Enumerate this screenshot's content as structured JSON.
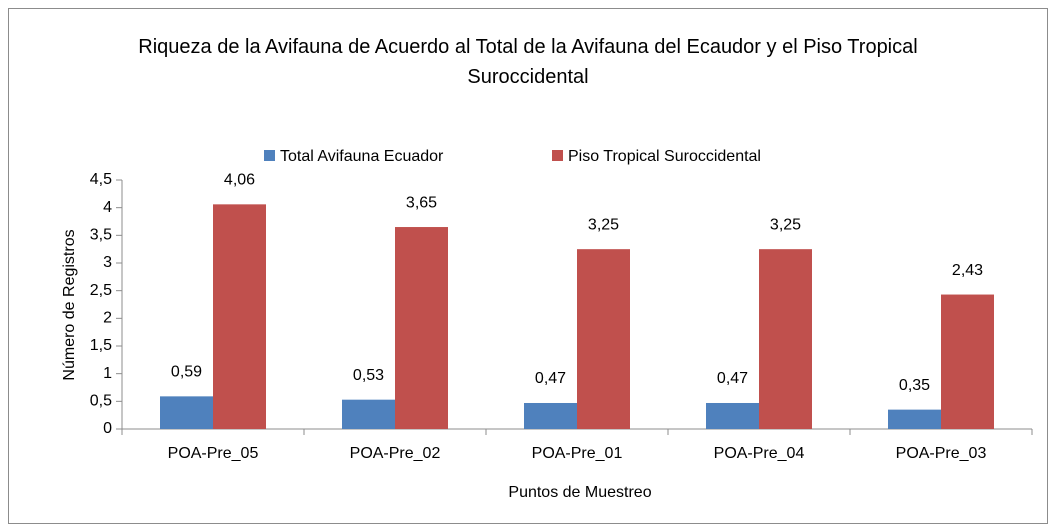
{
  "chart_data": {
    "type": "bar",
    "title": "Riqueza de la Avifauna de Acuerdo al Total de la Avifauna del Ecaudor y el Piso Tropical Suroccidental",
    "x_label": "Puntos de Muestreo",
    "y_label": "Número de Registros",
    "categories": [
      "POA-Pre_05",
      "POA-Pre_02",
      "POA-Pre_01",
      "POA-Pre_04",
      "POA-Pre_03"
    ],
    "series": [
      {
        "name": "Total Avifauna Ecuador",
        "color": "#4f81bd",
        "values": [
          0.59,
          0.53,
          0.47,
          0.47,
          0.35
        ],
        "value_labels": [
          "0,59",
          "0,53",
          "0,47",
          "0,47",
          "0,35"
        ]
      },
      {
        "name": "Piso Tropical Suroccidental",
        "color": "#c0504d",
        "values": [
          4.06,
          3.65,
          3.25,
          3.25,
          2.43
        ],
        "value_labels": [
          "4,06",
          "3,65",
          "3,25",
          "3,25",
          "2,43"
        ]
      }
    ],
    "ylim": [
      0,
      4.5
    ],
    "yticks": [
      0,
      {
        "value": 0.5,
        "label": "0,5"
      },
      1,
      {
        "value": 1.5,
        "label": "1,5"
      },
      2,
      {
        "value": 2.5,
        "label": "2,5"
      },
      3,
      {
        "value": 3.5,
        "label": "3,5"
      },
      4,
      {
        "value": 4.5,
        "label": "4,5"
      }
    ],
    "grid": false,
    "legend": "top"
  }
}
